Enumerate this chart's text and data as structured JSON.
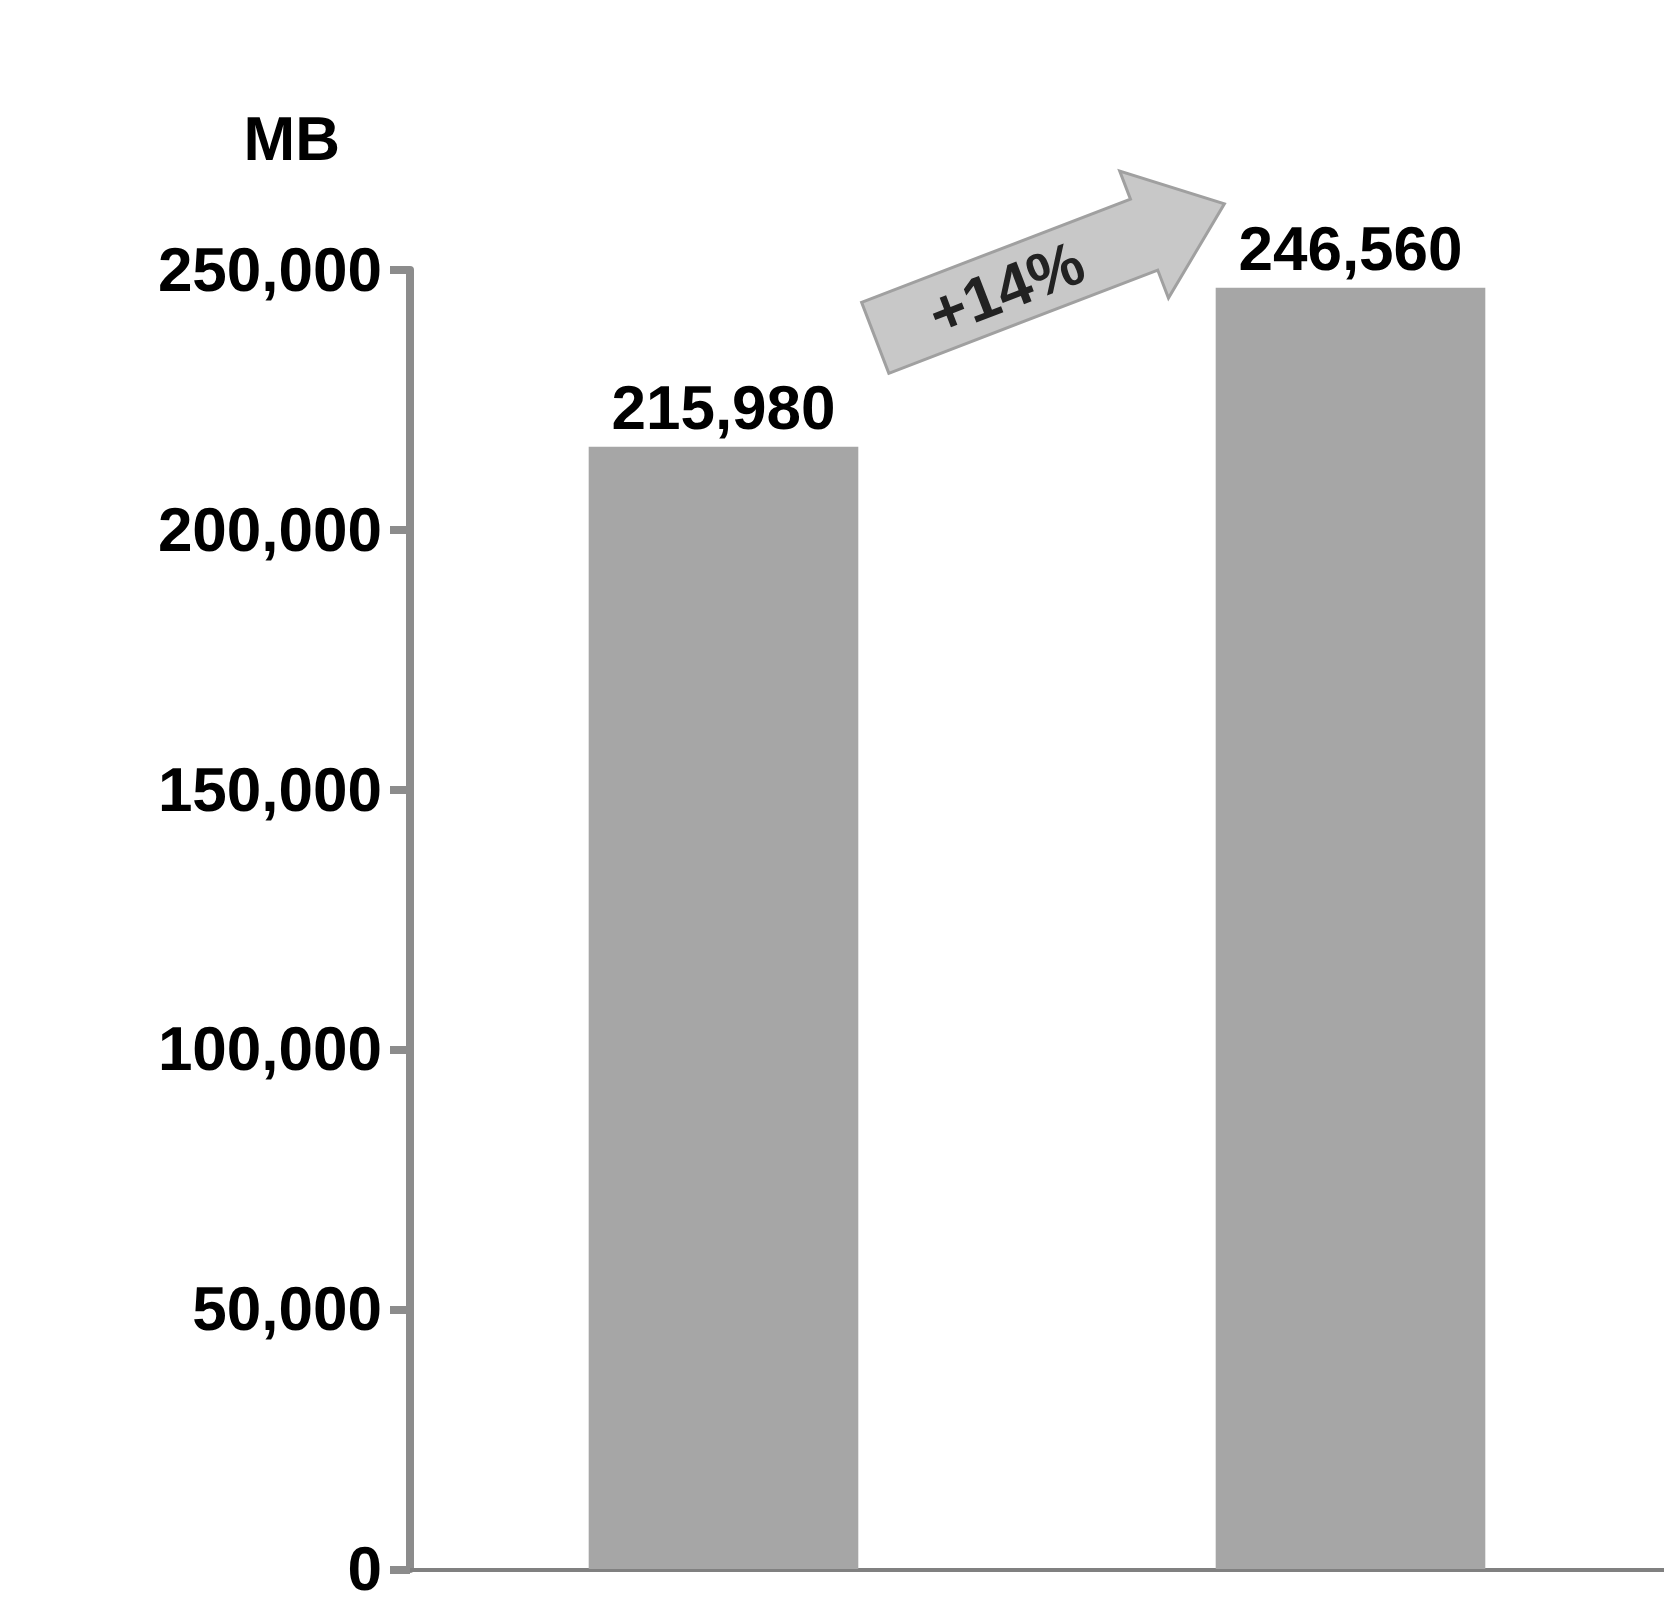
{
  "chart_data": {
    "type": "bar",
    "ylabel": "MB",
    "categories": [
      null,
      null
    ],
    "values": [
      215980,
      246560
    ],
    "value_labels": [
      "215,980",
      "246,560"
    ],
    "color": "#a6a6a6",
    "ylim": [
      0,
      250000
    ],
    "yticks": [
      0,
      {
        "value": 50000,
        "label": "50,000"
      },
      {
        "value": 100000,
        "label": "100,000"
      },
      {
        "value": 150000,
        "label": "150,000"
      },
      {
        "value": 200000,
        "label": "200,000"
      },
      {
        "value": 250000,
        "label": "250,000"
      }
    ],
    "grid": false,
    "tick_labels": "y",
    "annotations": [
      "+14%"
    ]
  }
}
